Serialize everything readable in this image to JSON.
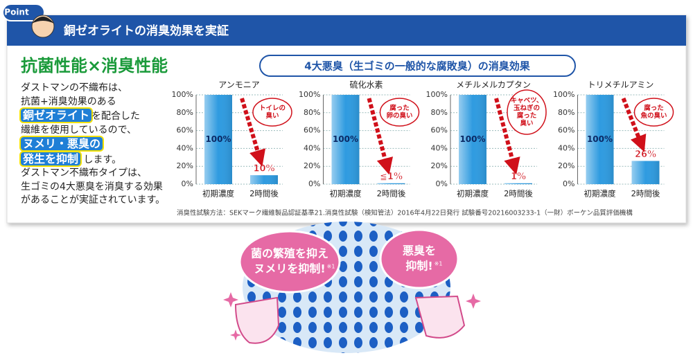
{
  "badge": "Point",
  "header": {
    "title": "銅ゼオライトの消臭効果を実証"
  },
  "heading": "抗菌性能×消臭性能",
  "chart_heading": "4大悪臭（生ゴミの一般的な腐敗臭）の消臭効果",
  "intro": [
    [
      {
        "text": "ダストマンの不織布は、"
      }
    ],
    [
      {
        "text": "抗菌+消臭効果のある"
      }
    ],
    [
      {
        "text": "銅ゼオライト",
        "highlight": true
      },
      {
        "text": "を配合した"
      }
    ],
    [
      {
        "text": "繊維を使用しているので、"
      }
    ],
    [
      {
        "text": "ヌメリ・悪臭の",
        "highlight": true
      }
    ],
    [
      {
        "text": "発生を抑制",
        "highlight": true
      },
      {
        "text": " します。"
      }
    ],
    [
      {
        "text": "ダストマン不織布タイプは、"
      }
    ],
    [
      {
        "text": "生ゴミの4大悪臭を消臭する効果"
      }
    ],
    [
      {
        "text": "があることが実証されています。"
      }
    ]
  ],
  "chart_data": [
    {
      "type": "bar",
      "title": "アンモニア",
      "categories": [
        "初期濃度",
        "2時間後"
      ],
      "values": [
        100,
        10
      ],
      "value_labels": [
        "100%",
        "10%"
      ],
      "color": "#2f9be0",
      "ylim": [
        0,
        100
      ],
      "yticks": [
        {
          "value": 0,
          "label": "0%"
        },
        {
          "value": 20,
          "label": "20%"
        },
        {
          "value": 40,
          "label": "40%"
        },
        {
          "value": 60,
          "label": "60%"
        },
        {
          "value": 80,
          "label": "80%"
        },
        {
          "value": 100,
          "label": "100%"
        }
      ],
      "grid": true,
      "annotation": [
        "トイレの",
        "臭い"
      ]
    },
    {
      "type": "bar",
      "title": "硫化水素",
      "categories": [
        "初期濃度",
        "2時間後"
      ],
      "values": [
        100,
        1
      ],
      "value_labels": [
        "100%",
        "≦1%"
      ],
      "color": "#2f9be0",
      "ylim": [
        0,
        100
      ],
      "yticks": [
        {
          "value": 0,
          "label": "0%"
        },
        {
          "value": 20,
          "label": "20%"
        },
        {
          "value": 40,
          "label": "40%"
        },
        {
          "value": 60,
          "label": "60%"
        },
        {
          "value": 80,
          "label": "80%"
        },
        {
          "value": 100,
          "label": "100%"
        }
      ],
      "grid": true,
      "annotation": [
        "腐った",
        "卵の臭い"
      ]
    },
    {
      "type": "bar",
      "title": "メチルメルカプタン",
      "categories": [
        "初期濃度",
        "2時間後"
      ],
      "values": [
        100,
        1
      ],
      "value_labels": [
        "100%",
        "1%"
      ],
      "color": "#2f9be0",
      "ylim": [
        0,
        100
      ],
      "yticks": [
        {
          "value": 0,
          "label": "0%"
        },
        {
          "value": 20,
          "label": "20%"
        },
        {
          "value": 40,
          "label": "40%"
        },
        {
          "value": 60,
          "label": "60%"
        },
        {
          "value": 80,
          "label": "80%"
        },
        {
          "value": 100,
          "label": "100%"
        }
      ],
      "grid": true,
      "annotation": [
        "キャベツ、",
        "玉ねぎの",
        "腐った",
        "臭い"
      ]
    },
    {
      "type": "bar",
      "title": "トリメチルアミン",
      "categories": [
        "初期濃度",
        "2時間後"
      ],
      "values": [
        100,
        26
      ],
      "value_labels": [
        "100%",
        "26%"
      ],
      "color": "#2f9be0",
      "ylim": [
        0,
        100
      ],
      "yticks": [
        {
          "value": 0,
          "label": "0%"
        },
        {
          "value": 20,
          "label": "20%"
        },
        {
          "value": 40,
          "label": "40%"
        },
        {
          "value": 60,
          "label": "60%"
        },
        {
          "value": 80,
          "label": "80%"
        },
        {
          "value": 100,
          "label": "100%"
        }
      ],
      "grid": true,
      "annotation": [
        "腐った",
        "魚の臭い"
      ]
    }
  ],
  "note": "消臭性試験方法：SEKマーク繊維製品認証基準21.消臭性試験（検知管法）2016年4月22日発行 試験番号20216003233-1（一財）ボーケン品質評価機構",
  "bubbles": [
    {
      "lines": [
        "菌の繁殖を抑え",
        "ヌメリを抑制!"
      ],
      "mark": "※1"
    },
    {
      "lines": [
        "悪臭を",
        "抑制!"
      ],
      "mark": "※1"
    }
  ]
}
